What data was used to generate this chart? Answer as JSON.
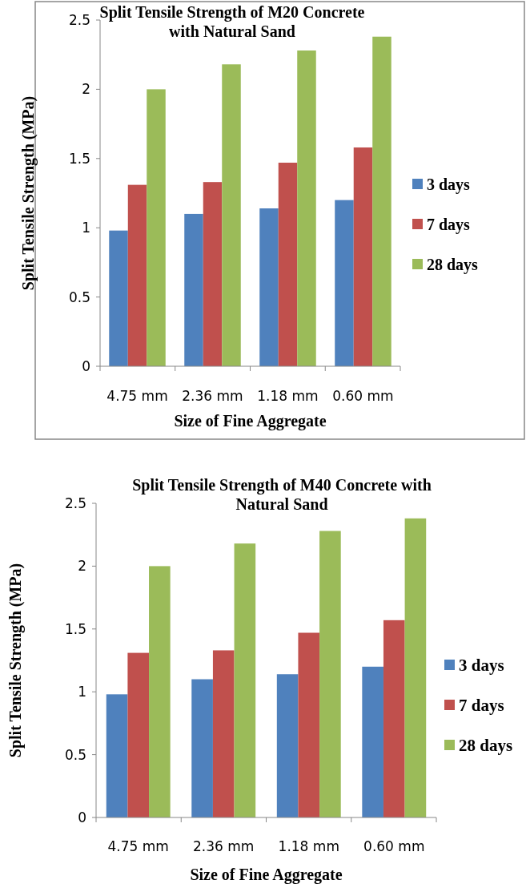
{
  "chart_data": [
    {
      "type": "bar",
      "title": "Split Tensile Strength of M20 Concrete with Natural Sand",
      "xlabel": "Size of Fine Aggregate",
      "ylabel": "Split Tensile Strength (MPa)",
      "categories": [
        "4.75 mm",
        "2.36 mm",
        "1.18 mm",
        "0.60 mm"
      ],
      "series": [
        {
          "name": "3 days",
          "color": "#4f81bd",
          "values": [
            0.98,
            1.1,
            1.14,
            1.2
          ]
        },
        {
          "name": "7 days",
          "color": "#c0504d",
          "values": [
            1.31,
            1.33,
            1.47,
            1.58
          ]
        },
        {
          "name": "28 days",
          "color": "#9bbb59",
          "values": [
            2.0,
            2.18,
            2.28,
            2.38
          ]
        }
      ],
      "ylim": [
        0,
        2.5
      ],
      "yticks": [
        0,
        0.5,
        1,
        1.5,
        2,
        2.5
      ],
      "grid": false,
      "legend": "right"
    },
    {
      "type": "bar",
      "title": "Split Tensile Strength of M40 Concrete with Natural Sand",
      "xlabel": "Size of Fine Aggregate",
      "ylabel": "Split Tensile Strength (MPa)",
      "categories": [
        "4.75 mm",
        "2.36 mm",
        "1.18 mm",
        "0.60 mm"
      ],
      "series": [
        {
          "name": "3 days",
          "color": "#4f81bd",
          "values": [
            0.98,
            1.1,
            1.14,
            1.2
          ]
        },
        {
          "name": "7 days",
          "color": "#c0504d",
          "values": [
            1.31,
            1.33,
            1.47,
            1.57
          ]
        },
        {
          "name": "28 days",
          "color": "#9bbb59",
          "values": [
            2.0,
            2.18,
            2.28,
            2.38
          ]
        }
      ],
      "ylim": [
        0,
        2.5
      ],
      "yticks": [
        0,
        0.5,
        1,
        1.5,
        2,
        2.5
      ],
      "grid": false,
      "legend": "right"
    }
  ]
}
